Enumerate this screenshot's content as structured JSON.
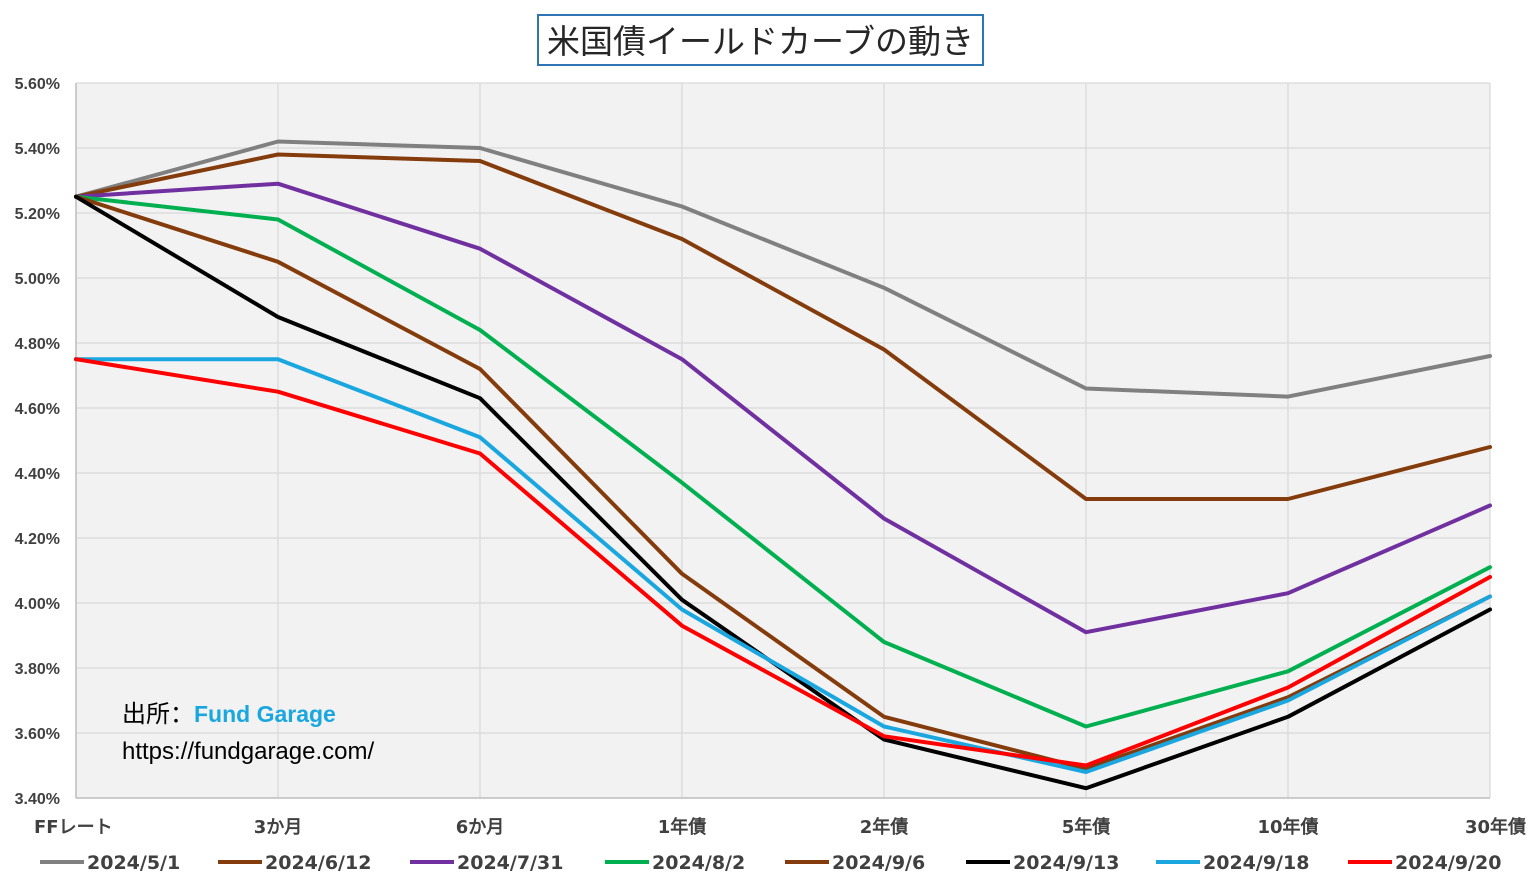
{
  "chart_data": {
    "type": "line",
    "title": "米国債イールドカーブの動き",
    "xlabel": "",
    "ylabel": "",
    "categories": [
      "FFレート",
      "3か月",
      "6か月",
      "1年債",
      "2年債",
      "5年債",
      "10年債",
      "30年債"
    ],
    "ylim": [
      3.4,
      5.6
    ],
    "y_ticks": [
      "3.40%",
      "3.60%",
      "3.80%",
      "4.00%",
      "4.20%",
      "4.40%",
      "4.60%",
      "4.80%",
      "5.00%",
      "5.20%",
      "5.40%",
      "5.60%"
    ],
    "y_tick_values": [
      3.4,
      3.6,
      3.8,
      4.0,
      4.2,
      4.4,
      4.6,
      4.8,
      5.0,
      5.2,
      5.4,
      5.6
    ],
    "grid": true,
    "legend_position": "bottom",
    "series": [
      {
        "name": "2024/5/1",
        "color": "#808080",
        "values": [
          5.25,
          5.42,
          5.4,
          5.22,
          4.97,
          4.66,
          4.635,
          4.76
        ]
      },
      {
        "name": "2024/6/12",
        "color": "#843c0c",
        "values": [
          5.25,
          5.38,
          5.36,
          5.12,
          4.78,
          4.32,
          4.32,
          4.48
        ]
      },
      {
        "name": "2024/7/31",
        "color": "#7030a0",
        "values": [
          5.25,
          5.29,
          5.09,
          4.75,
          4.26,
          3.91,
          4.03,
          4.3
        ]
      },
      {
        "name": "2024/8/2",
        "color": "#00b050",
        "values": [
          5.25,
          5.18,
          4.84,
          4.37,
          3.88,
          3.62,
          3.79,
          4.11
        ]
      },
      {
        "name": "2024/9/6",
        "color": "#843c0c",
        "values": [
          5.25,
          5.05,
          4.72,
          4.09,
          3.65,
          3.49,
          3.71,
          4.02
        ]
      },
      {
        "name": "2024/9/13",
        "color": "#000000",
        "values": [
          5.25,
          4.88,
          4.63,
          4.01,
          3.58,
          3.43,
          3.65,
          3.98
        ]
      },
      {
        "name": "2024/9/18",
        "color": "#1aa7e0",
        "values": [
          4.75,
          4.75,
          4.51,
          3.98,
          3.62,
          3.48,
          3.7,
          4.02
        ]
      },
      {
        "name": "2024/9/20",
        "color": "#ff0000",
        "values": [
          4.75,
          4.65,
          4.46,
          3.93,
          3.59,
          3.5,
          3.74,
          4.08
        ]
      }
    ]
  },
  "source": {
    "label": "出所：",
    "name": "Fund Garage",
    "url": "https://fundgarage.com/"
  }
}
